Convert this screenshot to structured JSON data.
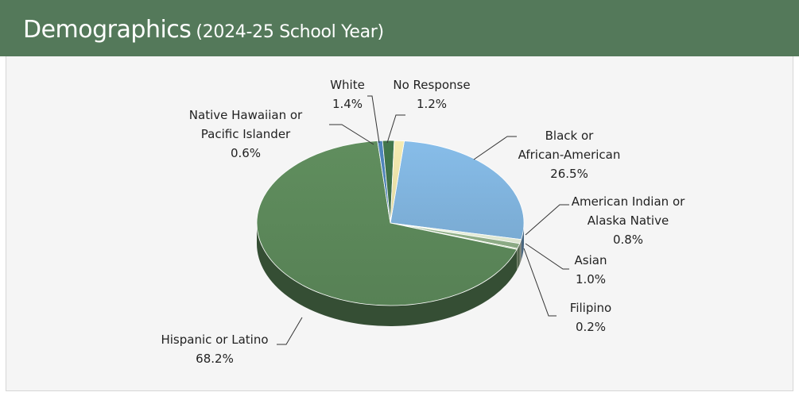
{
  "header": {
    "title": "Demographics",
    "subtitle": "(2024-25 School Year)"
  },
  "colors": {
    "header_bg": "#54795a",
    "panel_bg": "#f5f5f5"
  },
  "chart_data": {
    "type": "pie",
    "title": "Demographics (2024-25 School Year)",
    "legend": "none",
    "slices": [
      {
        "label_lines": [
          "Black or",
          "African-American"
        ],
        "value": 26.5,
        "display": "26.5%",
        "color": "#7fb2dc"
      },
      {
        "label_lines": [
          "American Indian or",
          "Alaska Native"
        ],
        "value": 0.8,
        "display": "0.8%",
        "color": "#e3ebd6"
      },
      {
        "label_lines": [
          "Asian"
        ],
        "value": 1.0,
        "display": "1.0%",
        "color": "#8fae87"
      },
      {
        "label_lines": [
          "Filipino"
        ],
        "value": 0.2,
        "display": "0.2%",
        "color": "#b9d19c"
      },
      {
        "label_lines": [
          "Hispanic or Latino"
        ],
        "value": 68.2,
        "display": "68.2%",
        "color": "#5b8659"
      },
      {
        "label_lines": [
          "Native Hawaiian or",
          "Pacific Islander"
        ],
        "value": 0.6,
        "display": "0.6%",
        "color": "#4b7fb4"
      },
      {
        "label_lines": [
          "White"
        ],
        "value": 1.4,
        "display": "1.4%",
        "color": "#3e7048"
      },
      {
        "label_lines": [
          "No Response"
        ],
        "value": 1.2,
        "display": "1.2%",
        "color": "#e8dfa8"
      }
    ]
  }
}
